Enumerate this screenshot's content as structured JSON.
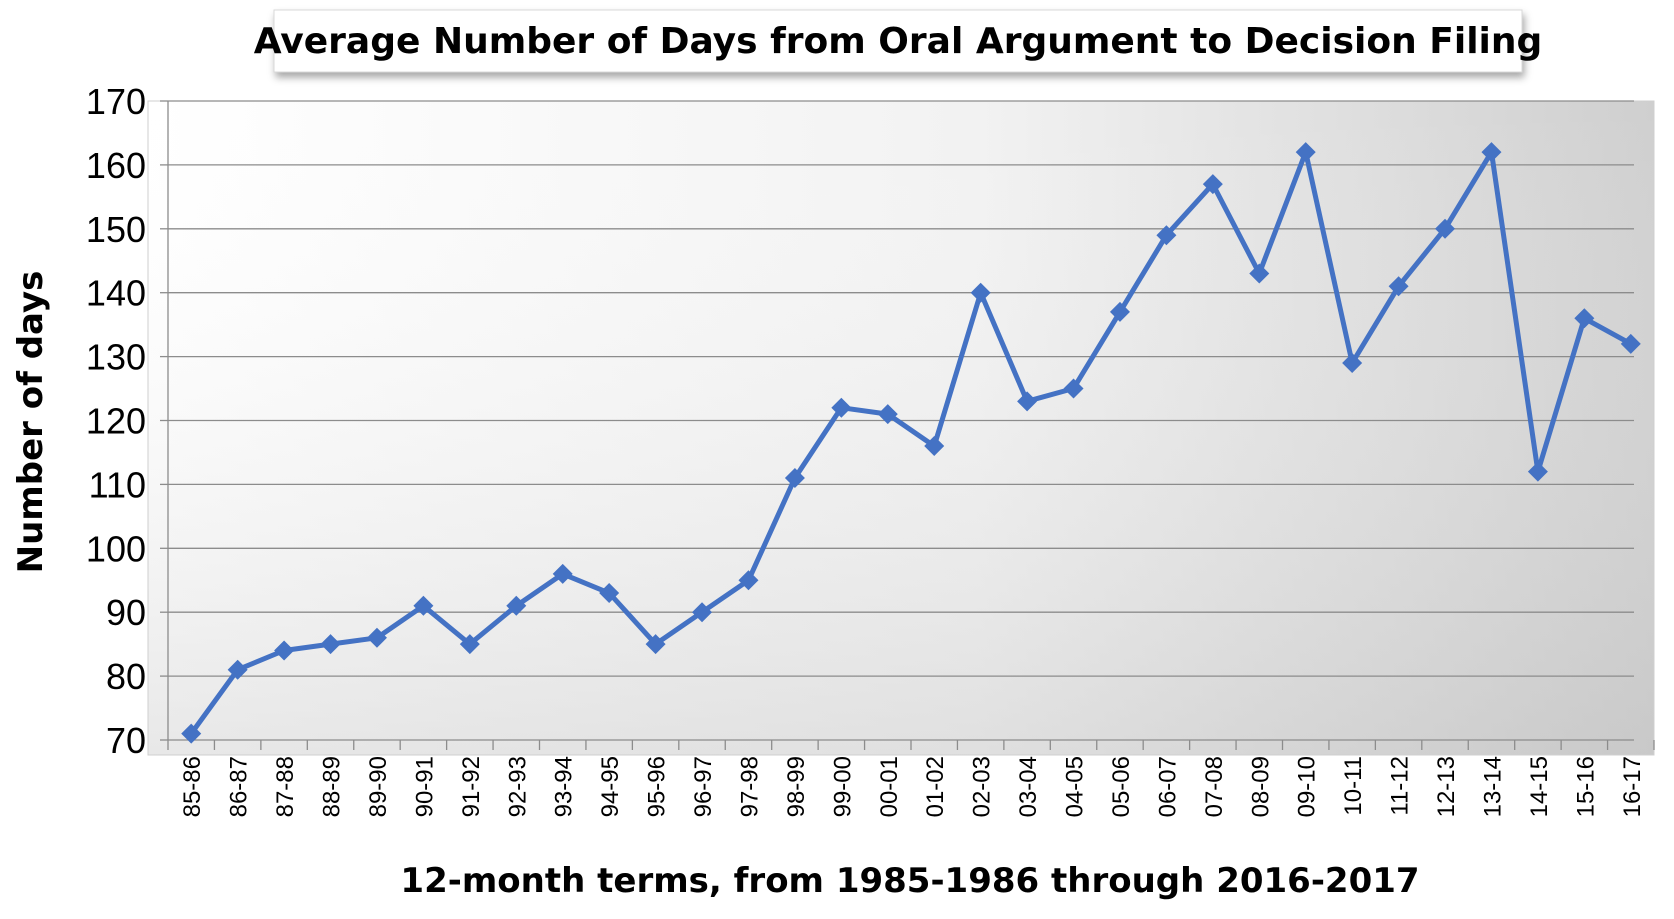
{
  "chart_data": {
    "type": "line",
    "title": "Average Number of Days from Oral Argument to Decision Filing",
    "xlabel": "12-month terms, from 1985-1986 through 2016-2017",
    "ylabel": "Number of days",
    "ylim": [
      70,
      170
    ],
    "yticks": [
      "70",
      "80",
      "90",
      "100",
      "110",
      "120",
      "130",
      "140",
      "150",
      "160",
      "170"
    ],
    "grid": true,
    "legend": "none",
    "categories": [
      "85-86",
      "86-87",
      "87-88",
      "88-89",
      "89-90",
      "90-91",
      "91-92",
      "92-93",
      "93-94",
      "94-95",
      "95-96",
      "96-97",
      "97-98",
      "98-99",
      "99-00",
      "00-01",
      "01-02",
      "02-03",
      "03-04",
      "04-05",
      "05-06",
      "06-07",
      "07-08",
      "08-09",
      "09-10",
      "10-11",
      "11-12",
      "12-13",
      "13-14",
      "14-15",
      "15-16",
      "16-17"
    ],
    "series": [
      {
        "values": [
          71,
          81,
          84,
          85,
          86,
          91,
          85,
          91,
          96,
          93,
          85,
          90,
          95,
          111,
          122,
          121,
          116,
          140,
          123,
          125,
          137,
          149,
          157,
          143,
          162,
          129,
          141,
          150,
          162,
          112,
          136,
          132
        ]
      }
    ],
    "colors": {
      "series": "#4472c4",
      "plot_gradient_light": "#ffffff",
      "plot_gradient_dark": "#cfcfcf",
      "grid": "#8c8c8c"
    },
    "marker": "diamond"
  }
}
